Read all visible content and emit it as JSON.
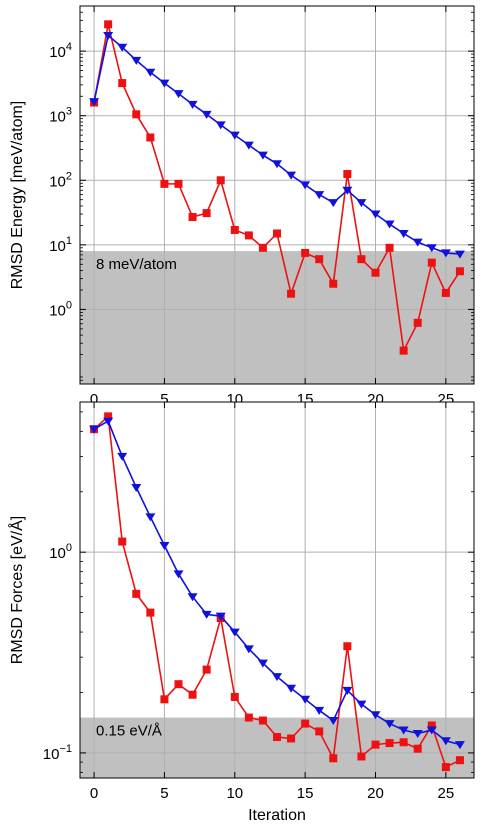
{
  "chart_data": [
    {
      "type": "line",
      "yscale": "log",
      "ylabel": "RMSD Energy [meV/atom]",
      "xlabel": "",
      "xlim": [
        -1,
        27
      ],
      "ylim": [
        0.07,
        50000
      ],
      "x_ticks": [
        0,
        5,
        10,
        15,
        20,
        25
      ],
      "y_ticks": [
        {
          "value": 1,
          "mantissa": "10",
          "exp": "0"
        },
        {
          "value": 10,
          "mantissa": "10",
          "exp": "1"
        },
        {
          "value": 100,
          "mantissa": "10",
          "exp": "2"
        },
        {
          "value": 1000,
          "mantissa": "10",
          "exp": "3"
        },
        {
          "value": 10000,
          "mantissa": "10",
          "exp": "4"
        }
      ],
      "grid": true,
      "threshold": {
        "value": 8,
        "label": "8 meV/atom",
        "color": "#c0c0c0"
      },
      "series": [
        {
          "color": "#ee1111",
          "marker": "square",
          "x": [
            0,
            1,
            2,
            3,
            4,
            5,
            6,
            7,
            8,
            9,
            10,
            11,
            12,
            13,
            14,
            15,
            16,
            17,
            18,
            19,
            20,
            21,
            22,
            23,
            24,
            25,
            26
          ],
          "y": [
            1600,
            26000,
            3200,
            1050,
            460,
            88,
            88,
            27,
            31,
            100,
            17,
            14,
            9,
            15,
            1.75,
            7.5,
            6,
            2.5,
            125,
            6,
            3.7,
            9,
            0.23,
            0.62,
            5.3,
            1.8,
            3.9
          ]
        },
        {
          "color": "#1111dd",
          "marker": "triangle-down",
          "x": [
            0,
            1,
            2,
            3,
            4,
            5,
            6,
            7,
            8,
            9,
            10,
            11,
            12,
            13,
            14,
            15,
            16,
            17,
            18,
            19,
            20,
            21,
            22,
            23,
            24,
            25,
            26
          ],
          "y": [
            1650,
            17500,
            11500,
            7200,
            4700,
            3200,
            2200,
            1500,
            1050,
            720,
            500,
            350,
            245,
            180,
            120,
            85,
            60,
            45,
            70,
            45,
            30,
            21,
            15,
            11,
            9,
            7.5,
            7.2
          ]
        }
      ]
    },
    {
      "type": "line",
      "yscale": "log",
      "ylabel": "RMSD Forces [eV/Å]",
      "xlabel": "Iteration",
      "xlim": [
        -1,
        27
      ],
      "ylim": [
        0.075,
        5.6
      ],
      "x_ticks": [
        0,
        5,
        10,
        15,
        20,
        25
      ],
      "y_ticks": [
        {
          "value": 0.1,
          "mantissa": "10",
          "exp": "−1"
        },
        {
          "value": 1,
          "mantissa": "10",
          "exp": "0"
        }
      ],
      "grid": true,
      "threshold": {
        "value": 0.15,
        "label": "0.15 eV/Å",
        "color": "#c0c0c0"
      },
      "series": [
        {
          "color": "#ee1111",
          "marker": "square",
          "x": [
            0,
            1,
            2,
            3,
            4,
            5,
            6,
            7,
            8,
            9,
            10,
            11,
            12,
            13,
            14,
            15,
            16,
            17,
            18,
            19,
            20,
            21,
            22,
            23,
            24,
            25,
            26
          ],
          "y": [
            4.1,
            4.75,
            1.13,
            0.62,
            0.5,
            0.185,
            0.22,
            0.195,
            0.26,
            0.47,
            0.19,
            0.15,
            0.145,
            0.12,
            0.118,
            0.14,
            0.128,
            0.094,
            0.34,
            0.096,
            0.11,
            0.112,
            0.113,
            0.105,
            0.137,
            0.085,
            0.092
          ]
        },
        {
          "color": "#1111dd",
          "marker": "triangle-down",
          "x": [
            0,
            1,
            2,
            3,
            4,
            5,
            6,
            7,
            8,
            9,
            10,
            11,
            12,
            13,
            14,
            15,
            16,
            17,
            18,
            19,
            20,
            21,
            22,
            23,
            24,
            25,
            26
          ],
          "y": [
            4.1,
            4.5,
            3.0,
            2.1,
            1.5,
            1.08,
            0.78,
            0.6,
            0.49,
            0.48,
            0.4,
            0.33,
            0.28,
            0.24,
            0.21,
            0.185,
            0.163,
            0.145,
            0.205,
            0.175,
            0.155,
            0.14,
            0.13,
            0.125,
            0.13,
            0.115,
            0.11
          ]
        }
      ]
    }
  ]
}
